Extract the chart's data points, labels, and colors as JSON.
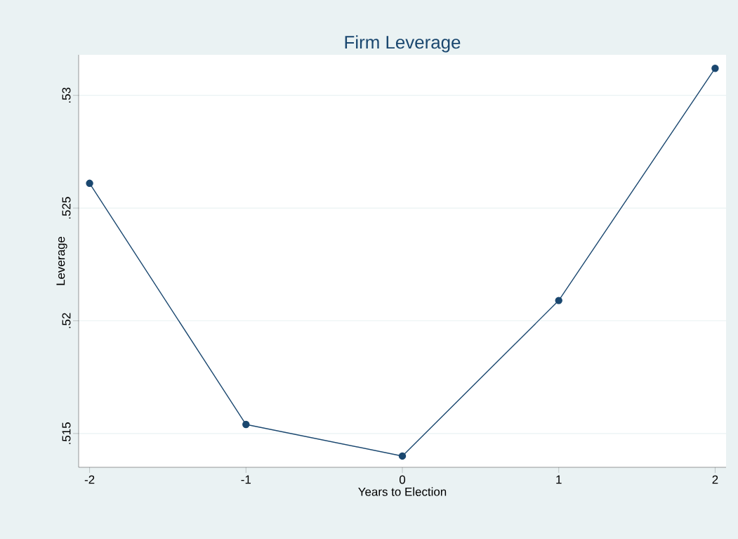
{
  "chart_data": {
    "type": "line",
    "title": "Firm Leverage",
    "xlabel": "Years to Election",
    "ylabel": "Leverage",
    "x": [
      -2,
      -1,
      0,
      1,
      2
    ],
    "series": [
      {
        "color": "#1a476f",
        "values": [
          0.5261,
          0.5154,
          0.514,
          0.5209,
          0.5312
        ]
      }
    ],
    "xlim": [
      -2.07,
      2.07
    ],
    "ylim": [
      0.5135,
      0.5318
    ],
    "xticks": [
      -2,
      -1,
      0,
      1,
      2
    ],
    "yticks": [
      {
        "value": 0.515,
        "label": ".515"
      },
      {
        "value": 0.52,
        "label": ".52"
      },
      {
        "value": 0.525,
        "label": ".525"
      },
      {
        "value": 0.53,
        "label": ".53"
      }
    ],
    "grid": "y",
    "marker": "circle",
    "line_style": "solid"
  }
}
